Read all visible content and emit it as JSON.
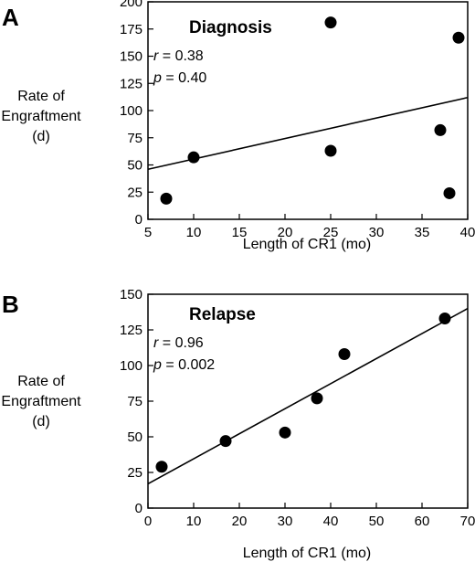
{
  "chart_data": [
    {
      "type": "scatter",
      "panel": "A",
      "title": "Diagnosis",
      "r_text": "r",
      "r_value": " = 0.38",
      "p_text": "p",
      "p_value": " = 0.40",
      "xlabel": "Length of CR1 (mo)",
      "ylabel": [
        "Rate of",
        "Engraftment",
        "(d)"
      ],
      "xlim": [
        5,
        40
      ],
      "ylim": [
        0,
        200
      ],
      "xticks": [
        5,
        10,
        15,
        20,
        25,
        30,
        35,
        40
      ],
      "yticks": [
        0,
        25,
        50,
        75,
        100,
        125,
        150,
        175,
        200
      ],
      "points": [
        {
          "x": 7,
          "y": 19
        },
        {
          "x": 10,
          "y": 57
        },
        {
          "x": 25,
          "y": 181
        },
        {
          "x": 25,
          "y": 63
        },
        {
          "x": 37,
          "y": 82
        },
        {
          "x": 38,
          "y": 24
        },
        {
          "x": 39,
          "y": 167
        }
      ],
      "fit_line": [
        {
          "x": 5,
          "y": 46
        },
        {
          "x": 40,
          "y": 112
        }
      ],
      "grid": false
    },
    {
      "type": "scatter",
      "panel": "B",
      "title": "Relapse",
      "r_text": "r",
      "r_value": " = 0.96",
      "p_text": "p",
      "p_value": " = 0.002",
      "xlabel": "Length of CR1 (mo)",
      "ylabel": [
        "Rate of",
        "Engraftment",
        "(d)"
      ],
      "xlim": [
        0,
        70
      ],
      "ylim": [
        0,
        150
      ],
      "xticks": [
        0,
        10,
        20,
        30,
        40,
        50,
        60,
        70
      ],
      "yticks": [
        0,
        25,
        50,
        75,
        100,
        125,
        150
      ],
      "points": [
        {
          "x": 3,
          "y": 29
        },
        {
          "x": 17,
          "y": 47
        },
        {
          "x": 30,
          "y": 53
        },
        {
          "x": 37,
          "y": 77
        },
        {
          "x": 43,
          "y": 108
        },
        {
          "x": 65,
          "y": 133
        }
      ],
      "fit_line": [
        {
          "x": 0,
          "y": 17
        },
        {
          "x": 70,
          "y": 140
        }
      ],
      "grid": false
    }
  ]
}
